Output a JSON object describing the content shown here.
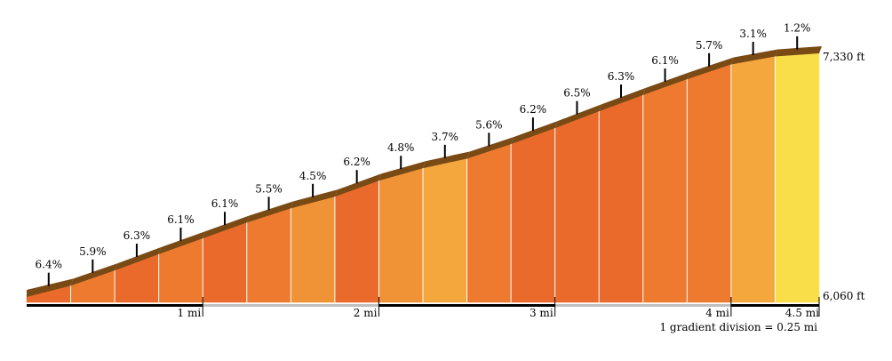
{
  "chart_data": {
    "type": "area",
    "title": "",
    "xlabel": "",
    "ylabel": "",
    "xlim": [
      0,
      4.5
    ],
    "ylim": [
      6060,
      7330
    ],
    "segment_length_mi": 0.25,
    "segments": [
      {
        "grade": 6.4,
        "color": "#ea6a2c"
      },
      {
        "grade": 5.9,
        "color": "#ee7a2f"
      },
      {
        "grade": 6.3,
        "color": "#ea6a2c"
      },
      {
        "grade": 6.1,
        "color": "#ee7a2f"
      },
      {
        "grade": 6.1,
        "color": "#ea6a2c"
      },
      {
        "grade": 5.5,
        "color": "#ee7a2f"
      },
      {
        "grade": 4.5,
        "color": "#ef9336"
      },
      {
        "grade": 6.2,
        "color": "#ea6a2c"
      },
      {
        "grade": 4.8,
        "color": "#ef9336"
      },
      {
        "grade": 3.7,
        "color": "#f3a73d"
      },
      {
        "grade": 5.6,
        "color": "#ee7a2f"
      },
      {
        "grade": 6.2,
        "color": "#ea6a2c"
      },
      {
        "grade": 6.5,
        "color": "#ea6a2c"
      },
      {
        "grade": 6.3,
        "color": "#ea6a2c"
      },
      {
        "grade": 6.1,
        "color": "#ee7a2f"
      },
      {
        "grade": 5.7,
        "color": "#ee7a2f"
      },
      {
        "grade": 3.1,
        "color": "#f3a73d"
      },
      {
        "grade": 1.2,
        "color": "#f9de4a"
      }
    ],
    "x_ticks": [
      {
        "value": 1,
        "label": "1 mi"
      },
      {
        "value": 2,
        "label": "2 mi"
      },
      {
        "value": 3,
        "label": "3 mi"
      },
      {
        "value": 4,
        "label": "4 mi"
      },
      {
        "value": 4.5,
        "label": "4.5 mi"
      }
    ],
    "y_labels": [
      {
        "value": 6060,
        "label": "6,060 ft"
      },
      {
        "value": 7330,
        "label": "7,330 ft"
      }
    ],
    "note": "1 gradient division = 0.25 mi",
    "top_edge_color": "#7a4a14",
    "line_color": "#000000"
  }
}
